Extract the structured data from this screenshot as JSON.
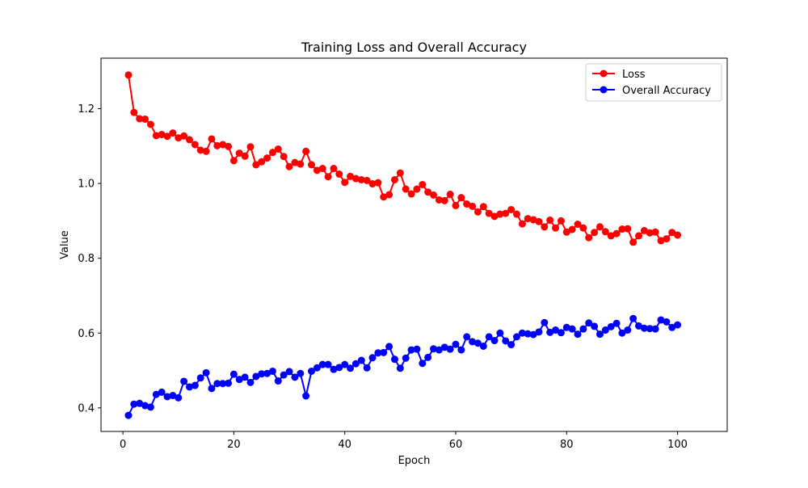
{
  "chart_data": {
    "type": "line",
    "title": "Training Loss and Overall Accuracy",
    "xlabel": "Epoch",
    "ylabel": "Value",
    "xlim": [
      -3.95,
      108.95
    ],
    "ylim": [
      0.337,
      1.335
    ],
    "x_ticks": [
      0,
      20,
      40,
      60,
      80,
      100
    ],
    "y_ticks": [
      0.4,
      0.6,
      0.8,
      1.0,
      1.2
    ],
    "y_tick_labels": [
      "0.4",
      "0.6",
      "0.8",
      "1.0",
      "1.2"
    ],
    "grid": false,
    "legend_position": "top-right",
    "x": [
      1,
      2,
      3,
      4,
      5,
      6,
      7,
      8,
      9,
      10,
      11,
      12,
      13,
      14,
      15,
      16,
      17,
      18,
      19,
      20,
      21,
      22,
      23,
      24,
      25,
      26,
      27,
      28,
      29,
      30,
      31,
      32,
      33,
      34,
      35,
      36,
      37,
      38,
      39,
      40,
      41,
      42,
      43,
      44,
      45,
      46,
      47,
      48,
      49,
      50,
      51,
      52,
      53,
      54,
      55,
      56,
      57,
      58,
      59,
      60,
      61,
      62,
      63,
      64,
      65,
      66,
      67,
      68,
      69,
      70,
      71,
      72,
      73,
      74,
      75,
      76,
      77,
      78,
      79,
      80,
      81,
      82,
      83,
      84,
      85,
      86,
      87,
      88,
      89,
      90,
      91,
      92,
      93,
      94,
      95,
      96,
      97,
      98,
      99,
      100
    ],
    "series": [
      {
        "name": "Loss",
        "color": "#ff0000",
        "values": [
          1.29,
          1.19,
          1.173,
          1.172,
          1.158,
          1.128,
          1.131,
          1.126,
          1.135,
          1.122,
          1.127,
          1.117,
          1.104,
          1.089,
          1.086,
          1.119,
          1.101,
          1.104,
          1.099,
          1.061,
          1.081,
          1.073,
          1.098,
          1.05,
          1.058,
          1.068,
          1.083,
          1.092,
          1.072,
          1.045,
          1.056,
          1.052,
          1.086,
          1.05,
          1.035,
          1.04,
          1.018,
          1.04,
          1.025,
          1.003,
          1.019,
          1.013,
          1.01,
          1.008,
          0.999,
          1.002,
          0.964,
          0.97,
          1.01,
          1.028,
          0.985,
          0.972,
          0.985,
          0.997,
          0.977,
          0.969,
          0.956,
          0.954,
          0.971,
          0.941,
          0.962,
          0.945,
          0.939,
          0.924,
          0.938,
          0.92,
          0.912,
          0.918,
          0.92,
          0.93,
          0.918,
          0.892,
          0.906,
          0.903,
          0.898,
          0.884,
          0.902,
          0.881,
          0.9,
          0.87,
          0.877,
          0.891,
          0.881,
          0.855,
          0.869,
          0.884,
          0.871,
          0.86,
          0.866,
          0.878,
          0.879,
          0.843,
          0.86,
          0.874,
          0.868,
          0.87,
          0.847,
          0.852,
          0.869,
          0.862
        ]
      },
      {
        "name": "Overall Accuracy",
        "color": "#0000ff",
        "values": [
          0.38,
          0.41,
          0.412,
          0.406,
          0.402,
          0.436,
          0.442,
          0.43,
          0.433,
          0.427,
          0.471,
          0.456,
          0.46,
          0.48,
          0.494,
          0.452,
          0.465,
          0.465,
          0.466,
          0.49,
          0.476,
          0.482,
          0.468,
          0.484,
          0.491,
          0.492,
          0.498,
          0.472,
          0.488,
          0.497,
          0.482,
          0.492,
          0.432,
          0.498,
          0.507,
          0.516,
          0.516,
          0.503,
          0.508,
          0.516,
          0.506,
          0.518,
          0.527,
          0.507,
          0.534,
          0.547,
          0.548,
          0.564,
          0.53,
          0.506,
          0.533,
          0.555,
          0.557,
          0.519,
          0.535,
          0.558,
          0.555,
          0.562,
          0.557,
          0.57,
          0.555,
          0.59,
          0.577,
          0.573,
          0.565,
          0.59,
          0.58,
          0.6,
          0.579,
          0.569,
          0.59,
          0.6,
          0.598,
          0.596,
          0.603,
          0.628,
          0.602,
          0.608,
          0.601,
          0.615,
          0.611,
          0.597,
          0.611,
          0.627,
          0.618,
          0.597,
          0.608,
          0.617,
          0.626,
          0.6,
          0.608,
          0.639,
          0.619,
          0.613,
          0.612,
          0.611,
          0.635,
          0.63,
          0.615,
          0.622
        ]
      }
    ]
  }
}
